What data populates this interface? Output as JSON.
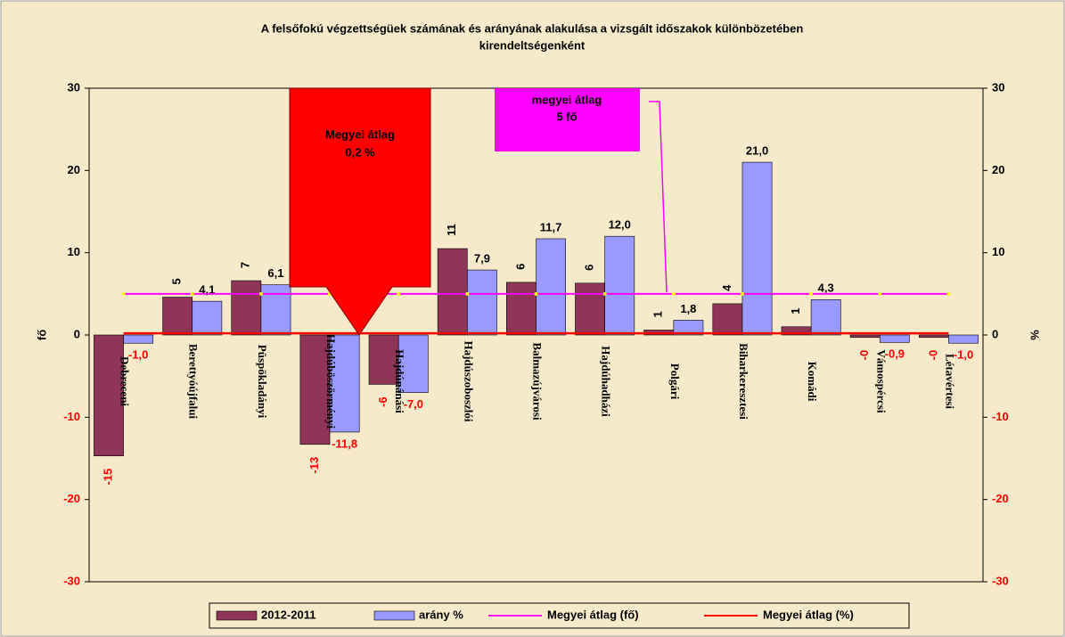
{
  "chart_data": {
    "type": "bar",
    "title": [
      "A felsőfokú végzettségüek számának és arányának alakulása a vizsgált időszakok különbözetében",
      "kirendeltségenként"
    ],
    "ylabel": "fő",
    "y2label": "%",
    "categories": [
      "Debreceni",
      "Berettyóújfalui",
      "Püspökladányi",
      "Hajdúböszörményi",
      "Hajdúnánási",
      "Hajdúszoboszlói",
      "Balmazújvárosi",
      "Hajdúhadházi",
      "Polgári",
      "Biharkeresztesi",
      "Komádi",
      "Vámospércsi",
      "Létavértesi"
    ],
    "series": [
      {
        "name": "2012-2011",
        "color": "#8E3558",
        "axis": "y",
        "values": [
          -14.7,
          4.6,
          6.6,
          -13.3,
          -6,
          10.5,
          6.4,
          6.3,
          0.6,
          3.8,
          1,
          -0.3,
          -0.3
        ],
        "value_labels": [
          "-15",
          "5",
          "7",
          "-13",
          "-6",
          "11",
          "6",
          "6",
          "1",
          "4",
          "1",
          "-0",
          "-0"
        ]
      },
      {
        "name": "arány %",
        "color": "#9999FF",
        "axis": "y2",
        "values": [
          -1.0,
          4.1,
          6.1,
          -11.8,
          -7.0,
          7.9,
          11.7,
          12.0,
          1.8,
          21.0,
          4.3,
          -0.9,
          -1.0
        ],
        "value_labels": [
          "-1,0",
          "4,1",
          "6,1",
          "-11,8",
          "-7,0",
          "7,9",
          "11,7",
          "12,0",
          "1,8",
          "21,0",
          "4,3",
          "-0,9",
          "-1,0"
        ]
      }
    ],
    "reference_lines": [
      {
        "name": "Megyei átlag (fő)",
        "value": 5,
        "axis": "y",
        "color": "#FF00FF"
      },
      {
        "name": "Megyei átlag (%)",
        "value": 0.2,
        "axis": "y2",
        "color": "#FF0000"
      }
    ],
    "annotations": [
      {
        "lines": [
          "Megyei átlag",
          "0,2 %"
        ]
      },
      {
        "lines": [
          "megyei átlag",
          "5 fő"
        ]
      }
    ],
    "ylim": [
      -30,
      30
    ],
    "yticks": [
      -30,
      -20,
      -10,
      0,
      10,
      20,
      30
    ],
    "y2lim": [
      -30,
      30
    ],
    "y2ticks": [
      -30,
      -20,
      -10,
      0,
      10,
      20,
      30
    ]
  }
}
